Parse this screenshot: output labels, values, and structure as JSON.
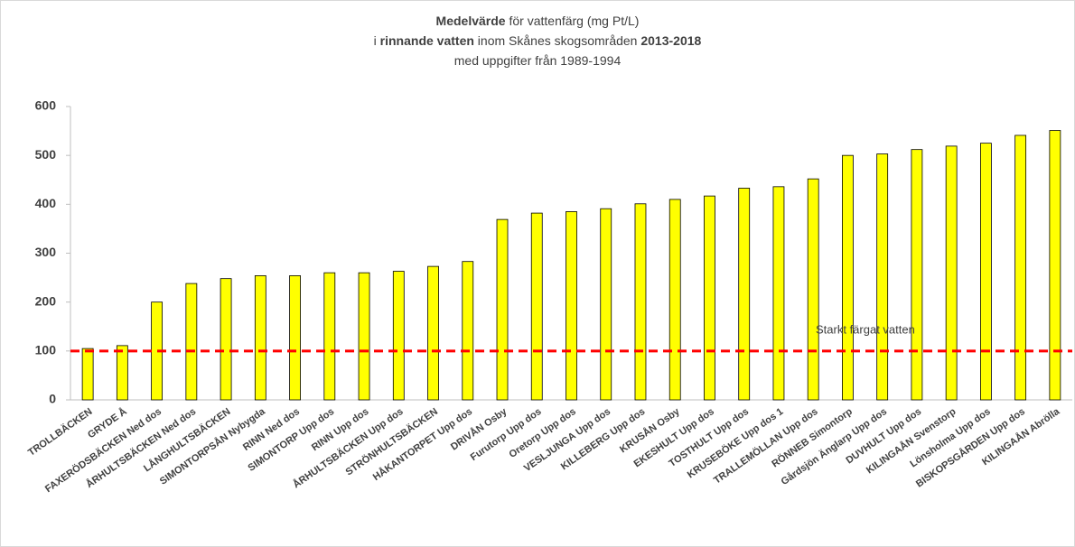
{
  "chart_data": {
    "type": "bar",
    "title_lines": [
      [
        {
          "text": "Medelvärde",
          "bold": true
        },
        {
          "text": " för vattenfärg (mg Pt/L)",
          "bold": false
        }
      ],
      [
        {
          "text": "i ",
          "bold": false
        },
        {
          "text": "rinnande vatten",
          "bold": true
        },
        {
          "text": " inom Skånes skogsområden ",
          "bold": false
        },
        {
          "text": "2013-2018",
          "bold": true
        }
      ],
      [
        {
          "text": "med uppgifter från 1989-1994",
          "bold": false
        }
      ]
    ],
    "categories": [
      "TROLLBÄCKEN",
      "GRYDE Å",
      "FAXERÖDSBÄCKEN Ned dos",
      "ÅRHULTSBÄCKEN Ned dos",
      "LÅNGHULTSBÄCKEN",
      "SIMONTORPSÅN Nybygda",
      "RINN Ned dos",
      "SIMONTORP Upp dos",
      "RINN Upp dos",
      "ÅRHULTSBÄCKEN Upp dos",
      "STRÖNHULTSBÄCKEN",
      "HÅKANTORPET Upp dos",
      "DRIVÅN Osby",
      "Furutorp Upp dos",
      "Oretorp Upp dos",
      "VESLJUNGA Upp dos",
      "KILLEBERG Upp dos",
      "KRUSÅN Osby",
      "EKESHULT Upp dos",
      "TOSTHULT Upp dos",
      "KRUSEBÖKE Upp dos 1",
      "TRALLEMÖLLAN Upp dos",
      "RÖNNEB Simontorp",
      "Gårdsjön Änglarp Upp dos",
      "DUVHULT Upp dos",
      "KILINGAÅN Svenstorp",
      "Lönsholma Upp dos",
      "BISKOPSGÅRDEN Upp dos",
      "KILINGAÅN Abrölla"
    ],
    "values": [
      105,
      111,
      200,
      238,
      248,
      254,
      254,
      260,
      260,
      263,
      273,
      283,
      369,
      382,
      385,
      391,
      401,
      410,
      417,
      433,
      436,
      452,
      500,
      503,
      512,
      519,
      525,
      541,
      551
    ],
    "color": "#ffff00",
    "reference_line": {
      "value": 100,
      "label": "Starkt färgat vatten",
      "color": "#ff0000"
    },
    "ylim": [
      0,
      600
    ],
    "yticks": [
      0,
      100,
      200,
      300,
      400,
      500,
      600
    ]
  }
}
